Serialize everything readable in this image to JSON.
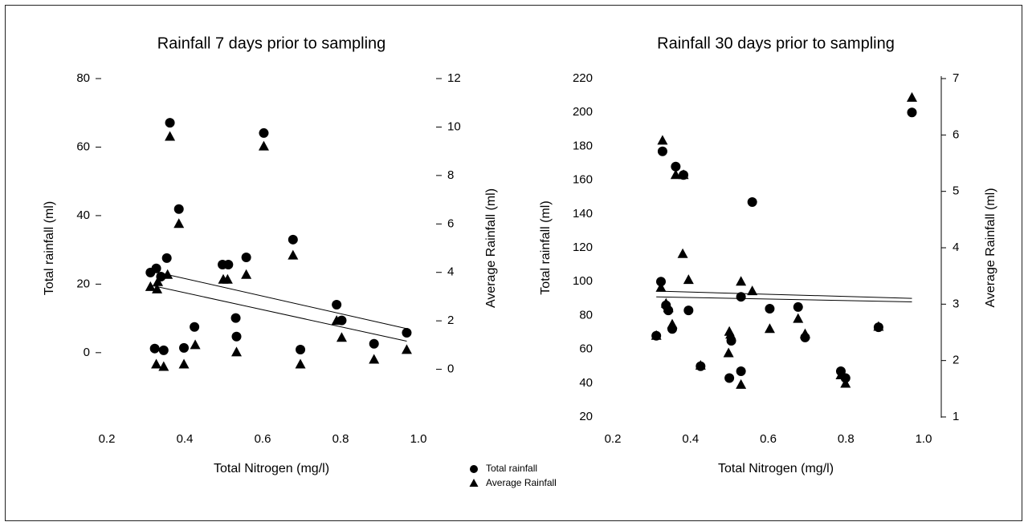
{
  "chart_data": [
    {
      "type": "scatter",
      "title": "Rainfall 7 days prior to sampling",
      "x_label": "Total Nitrogen (mg/l)",
      "y_label": "Total rainfall (ml)",
      "y2_label": "Average Rainfall (ml)",
      "xlim": [
        0.2,
        1.0
      ],
      "xticks": [
        0.2,
        0.4,
        0.6,
        0.8,
        {
          "value": 1.0,
          "label": "1.0"
        }
      ],
      "ylim": [
        -19,
        80
      ],
      "yticks": [
        0,
        20,
        40,
        60,
        80
      ],
      "y2lim": [
        -2,
        12
      ],
      "y2ticks": [
        0,
        2,
        4,
        6,
        8,
        10,
        12
      ],
      "series": [
        {
          "name": "Total rainfall",
          "marker": "circle",
          "color": "#000000",
          "axis": "y",
          "x": [
            0.312,
            0.327,
            0.323,
            0.339,
            0.346,
            0.354,
            0.362,
            0.385,
            0.398,
            0.425,
            0.497,
            0.512,
            0.531,
            0.533,
            0.558,
            0.603,
            0.678,
            0.697,
            0.79,
            0.803,
            0.886,
            0.97
          ],
          "values": [
            23.4,
            24.6,
            1.2,
            22.2,
            0.7,
            27.6,
            67.1,
            41.9,
            1.4,
            7.5,
            25.7,
            25.7,
            10.1,
            4.7,
            27.8,
            64.1,
            33.0,
            0.9,
            14.0,
            9.4,
            2.6,
            5.8
          ]
        },
        {
          "name": "Average Rainfall",
          "marker": "triangle",
          "color": "#000000",
          "axis": "y2",
          "x": [
            0.312,
            0.331,
            0.329,
            0.327,
            0.346,
            0.356,
            0.362,
            0.385,
            0.398,
            0.427,
            0.499,
            0.51,
            0.533,
            0.558,
            0.603,
            0.678,
            0.697,
            0.79,
            0.803,
            0.886,
            0.97
          ],
          "values": [
            3.4,
            3.6,
            3.3,
            0.2,
            0.1,
            3.9,
            9.6,
            6.0,
            0.2,
            1.0,
            3.7,
            3.7,
            0.7,
            3.9,
            9.2,
            4.7,
            0.2,
            2.0,
            1.3,
            0.4,
            0.8
          ]
        }
      ],
      "trendlines": [
        {
          "axis": "y",
          "x": [
            0.312,
            0.97
          ],
          "values": [
            23.9,
            7.0
          ]
        },
        {
          "axis": "y2",
          "x": [
            0.312,
            0.97
          ],
          "values": [
            3.47,
            1.16
          ]
        }
      ]
    },
    {
      "type": "scatter",
      "title": "Rainfall 30 days prior to sampling",
      "x_label": "Total Nitrogen (mg/l)",
      "y_label": "Total rainfall (ml)",
      "y2_label": "Average Rainfall (ml)",
      "xlim": [
        0.2,
        1.0
      ],
      "xticks": [
        0.2,
        0.4,
        0.6,
        0.8,
        {
          "value": 1.0,
          "label": "1.0"
        }
      ],
      "ylim": [
        20,
        220
      ],
      "yticks": [
        20,
        40,
        60,
        80,
        100,
        120,
        140,
        160,
        180,
        200,
        220
      ],
      "y2lim": [
        1,
        7
      ],
      "y2ticks": [
        1,
        2,
        3,
        4,
        5,
        6,
        7
      ],
      "series": [
        {
          "marker": "circle",
          "color": "#000000",
          "axis": "y",
          "x": [
            0.312,
            0.324,
            0.328,
            0.337,
            0.343,
            0.353,
            0.362,
            0.382,
            0.395,
            0.426,
            0.5,
            0.505,
            0.53,
            0.53,
            0.559,
            0.604,
            0.677,
            0.695,
            0.787,
            0.799,
            0.884,
            0.97
          ],
          "values": [
            68,
            100,
            177,
            86,
            83,
            72,
            168,
            163,
            83,
            50,
            43,
            65,
            91,
            47,
            147,
            84,
            85,
            67,
            47,
            43,
            73,
            200
          ]
        },
        {
          "marker": "triangle",
          "color": "#000000",
          "axis": "y2",
          "x": [
            0.312,
            0.324,
            0.328,
            0.337,
            0.343,
            0.353,
            0.362,
            0.382,
            0.38,
            0.395,
            0.426,
            0.498,
            0.5,
            0.503,
            0.53,
            0.53,
            0.559,
            0.604,
            0.677,
            0.695,
            0.787,
            0.799,
            0.884,
            0.97
          ],
          "values": [
            2.44,
            3.29,
            5.9,
            3.01,
            2.93,
            2.64,
            5.29,
            5.29,
            3.89,
            3.43,
            1.91,
            2.13,
            2.51,
            2.46,
            3.4,
            1.57,
            3.23,
            2.56,
            2.74,
            2.47,
            1.74,
            1.59,
            2.6,
            6.66
          ]
        }
      ],
      "trendlines": [
        {
          "axis": "y",
          "x": [
            0.312,
            0.97
          ],
          "values": [
            94.4,
            90.1
          ]
        },
        {
          "axis": "y2",
          "x": [
            0.312,
            0.97
          ],
          "values": [
            3.13,
            3.04
          ]
        }
      ]
    }
  ]
}
